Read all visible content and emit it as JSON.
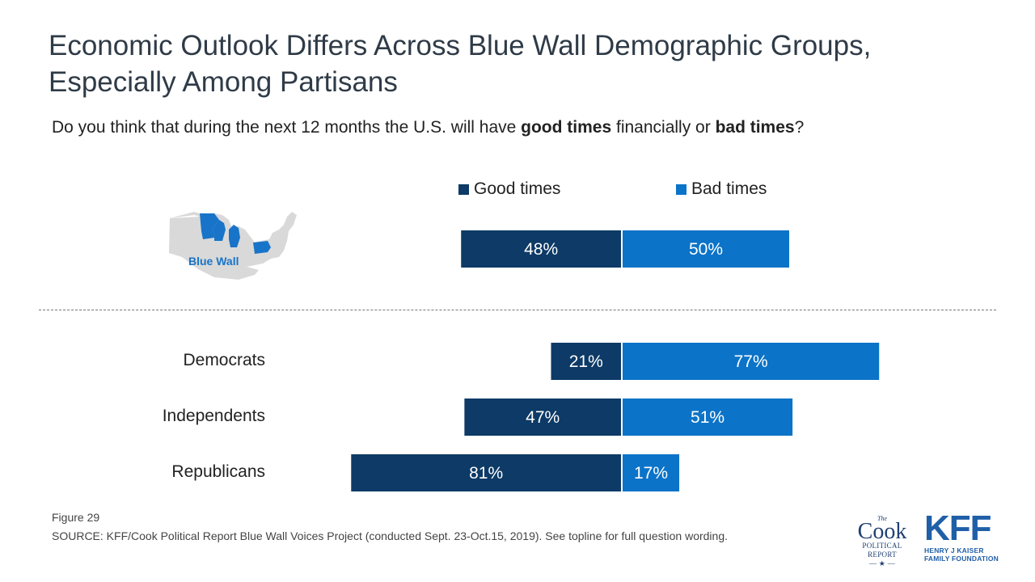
{
  "title_line1": "Economic Outlook Differs Across Blue Wall Demographic Groups,",
  "title_line2": "Especially Among Partisans",
  "question": {
    "pre": "Do you think that during the next 12 months the U.S. will have ",
    "bold1": "good times",
    "mid": " financially or ",
    "bold2": "bad times",
    "post": "?"
  },
  "map_label": "Blue Wall",
  "colors": {
    "good": "#0d3a66",
    "bad": "#0b73c8",
    "map_gray": "#d9d9d9",
    "map_blue": "#1874c8"
  },
  "chart_data": {
    "type": "bar",
    "orientation": "horizontal-diverging",
    "series": [
      {
        "name": "Good times",
        "values": [
          48,
          21,
          47,
          81
        ]
      },
      {
        "name": "Bad times",
        "values": [
          50,
          77,
          51,
          17
        ]
      }
    ],
    "categories": [
      "",
      "Democrats",
      "Independents",
      "Republicans"
    ],
    "value_suffix": "%",
    "legend_position": "top"
  },
  "footer": {
    "figure": "Figure 29",
    "source": "SOURCE: KFF/Cook Political Report Blue Wall Voices Project (conducted Sept. 23-Oct.15, 2019). See topline for full question wording."
  },
  "logos": {
    "cook_the": "The",
    "cook_name": "Cook",
    "cook_sub1": "POLITICAL",
    "cook_sub2": "REPORT",
    "kff_mark": "KFF",
    "kff_org1": "HENRY J KAISER",
    "kff_org2": "FAMILY FOUNDATION"
  }
}
